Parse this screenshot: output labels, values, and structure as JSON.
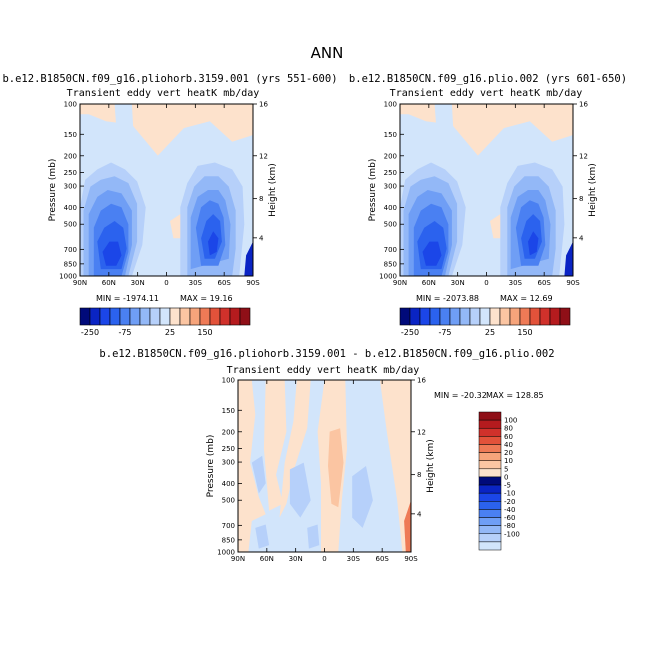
{
  "page": {
    "title": "ANN"
  },
  "colors": {
    "bg_light_blue": "#d2e5fb",
    "bg_peach": "#fde2cc",
    "neg": [
      "#000a7a",
      "#0a24c4",
      "#1b46e8",
      "#2b62ee",
      "#4a80f2",
      "#6f9ef5",
      "#93b8f7",
      "#b6d0fa",
      "#d2e5fb"
    ],
    "pos": [
      "#fde2cc",
      "#fbc5a2",
      "#f6a47b",
      "#ee7a56",
      "#e2523a",
      "#d0312b",
      "#b51b1e",
      "#8f0f17"
    ]
  },
  "chart_data": [
    {
      "type": "contour",
      "title": "b.e12.B1850CN.f09_g16.pliohorb.3159.001 (yrs 551-600)",
      "subtitle": "Transient eddy vert heatK mb/day",
      "ylabel": "Pressure (mb)",
      "y2label": "Height (km)",
      "x_ticks": [
        "90N",
        "60N",
        "30N",
        "0",
        "30S",
        "60S",
        "90S"
      ],
      "y_ticks": [
        "100",
        "150",
        "200",
        "250",
        "300",
        "400",
        "500",
        "700",
        "850",
        "1000"
      ],
      "y2_ticks": [
        "16",
        "12",
        "8",
        "4"
      ],
      "xlim": [
        90,
        -90
      ],
      "ylim": [
        1000,
        100
      ],
      "min_label": "MIN = -1974.11",
      "max_label": "MAX =  19.16"
    },
    {
      "type": "contour",
      "title": "b.e12.B1850CN.f09_g16.plio.002 (yrs 601-650)",
      "subtitle": "Transient eddy vert heatK mb/day",
      "ylabel": "Pressure (mb)",
      "y2label": "Height (km)",
      "x_ticks": [
        "90N",
        "60N",
        "30N",
        "0",
        "30S",
        "60S",
        "90S"
      ],
      "y_ticks": [
        "100",
        "150",
        "200",
        "250",
        "300",
        "400",
        "500",
        "700",
        "850",
        "1000"
      ],
      "y2_ticks": [
        "16",
        "12",
        "8",
        "4"
      ],
      "xlim": [
        90,
        -90
      ],
      "ylim": [
        1000,
        100
      ],
      "min_label": "MIN = -2073.88",
      "max_label": "MAX =  12.69"
    },
    {
      "type": "contour",
      "title": "b.e12.B1850CN.f09_g16.pliohorb.3159.001 - b.e12.B1850CN.f09_g16.plio.002",
      "subtitle": "Transient eddy vert heatK mb/day",
      "ylabel": "Pressure (mb)",
      "y2label": "Height (km)",
      "x_ticks": [
        "90N",
        "60N",
        "30N",
        "0",
        "30S",
        "60S",
        "90S"
      ],
      "y_ticks": [
        "100",
        "150",
        "200",
        "250",
        "300",
        "400",
        "500",
        "700",
        "850",
        "1000"
      ],
      "y2_ticks": [
        "16",
        "12",
        "8",
        "4"
      ],
      "xlim": [
        90,
        -90
      ],
      "ylim": [
        1000,
        100
      ],
      "min_label": "MIN = -20.32",
      "max_label": "MAX = 128.85"
    }
  ],
  "colorbar_main": {
    "labels": [
      "-250",
      "-75",
      "25",
      "150"
    ],
    "n_boxes": 17
  },
  "colorbar_diff": {
    "labels": [
      "100",
      "80",
      "60",
      "40",
      "20",
      "10",
      "5",
      "0",
      "-5",
      "-10",
      "-20",
      "-40",
      "-60",
      "-80",
      "-100"
    ]
  }
}
